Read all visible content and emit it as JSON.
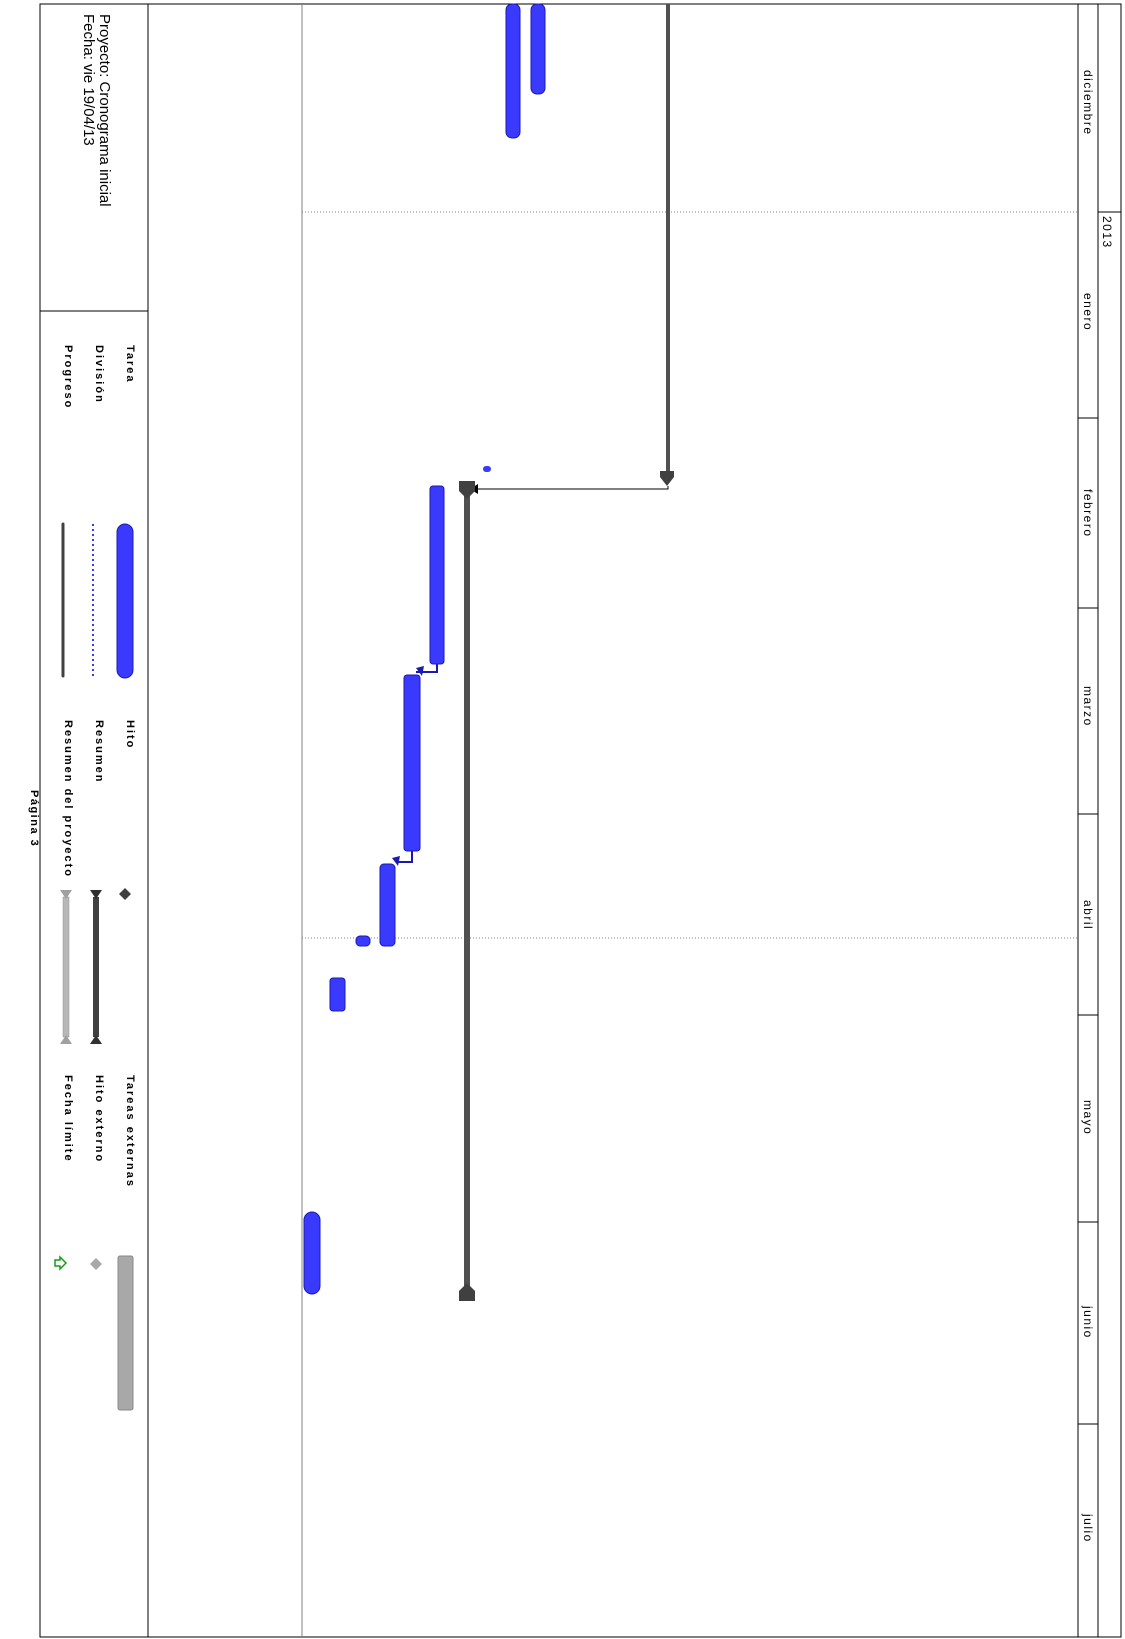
{
  "project": {
    "name_line": "Proyecto: Cronograma inicial",
    "date_line": "Fecha: vie 19/04/13"
  },
  "timescale": {
    "year": "2013",
    "months": [
      "diciembre",
      "enero",
      "febrero",
      "marzo",
      "abril",
      "mayo",
      "junio",
      "julio"
    ]
  },
  "legend": {
    "col1": [
      "Tarea",
      "División",
      "Progreso"
    ],
    "col2": [
      "Hito",
      "Resumen",
      "Resumen del proyecto"
    ],
    "col3": [
      "Tareas externas",
      "Hito externo",
      "Fecha límite"
    ]
  },
  "footer": {
    "page_label": "Página 3"
  },
  "colors": {
    "task_bar": "#3a3aff",
    "summary": "#505050",
    "external": "#a8a8a8",
    "deadline": "#1a9a1a",
    "grid": "#808080"
  },
  "icons": [
    "milestone-diamond-icon",
    "summary-bracket-icon",
    "external-milestone-icon",
    "deadline-arrow-icon"
  ]
}
